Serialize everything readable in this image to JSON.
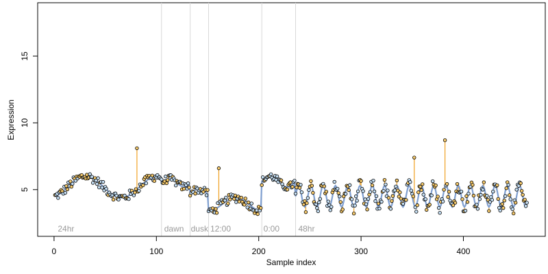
{
  "chart_data": {
    "type": "scatter",
    "title": "",
    "xlabel": "Sample index",
    "ylabel": "Expression",
    "xlim": [
      -16,
      480
    ],
    "ylim": [
      1.5,
      19
    ],
    "x_ticks": [
      0,
      100,
      200,
      300,
      400
    ],
    "y_ticks": [
      5,
      10,
      15
    ],
    "grid": false,
    "legend": "none",
    "colors": {
      "observed_fill": "#c6e0f5",
      "outlier_fill": "#f5c96b",
      "point_stroke": "#000000",
      "smooth_line": "#7f9fd0",
      "residual_line": "#f0a020",
      "divider": "#d8d8d8",
      "region_label": "#9a9a9a"
    },
    "region_dividers": [
      105,
      133,
      151,
      203,
      236
    ],
    "region_labels": [
      {
        "text": "24hr",
        "x": 3
      },
      {
        "text": "dawn",
        "x": 107
      },
      {
        "text": "dusk",
        "x": 133
      },
      {
        "text": "12:00",
        "x": 152
      },
      {
        "text": "0:00",
        "x": 204
      },
      {
        "text": "48hr",
        "x": 238
      }
    ],
    "series": [
      {
        "kind": "segment",
        "segments": [
          {
            "from": 0,
            "to": 105,
            "base": 5.2,
            "amp": 0.8,
            "period": 70,
            "phase": -1.2,
            "noise": 0.35
          },
          {
            "from": 105,
            "to": 133,
            "base": 5.5,
            "amp": 0.3,
            "period": 30,
            "phase": 0,
            "noise": 0.3
          },
          {
            "from": 133,
            "to": 151,
            "base": 4.8,
            "amp": 0.2,
            "period": 30,
            "phase": 0,
            "noise": 0.3
          },
          {
            "from": 151,
            "to": 203,
            "base": 3.9,
            "amp": 0.5,
            "period": 52,
            "phase": -1.6,
            "noise": 0.35
          },
          {
            "from": 203,
            "to": 236,
            "base": 5.6,
            "amp": 0.4,
            "period": 33,
            "phase": 0,
            "noise": 0.3
          },
          {
            "from": 236,
            "to": 462,
            "base": 4.5,
            "amp": 0.8,
            "period": 12,
            "phase": 0,
            "noise": 0.5
          }
        ],
        "n_points": 462,
        "outliers": [
          {
            "x": 81,
            "y": 8.1
          },
          {
            "x": 161,
            "y": 6.6
          },
          {
            "x": 352,
            "y": 7.4
          },
          {
            "x": 382,
            "y": 8.7
          }
        ]
      }
    ]
  }
}
